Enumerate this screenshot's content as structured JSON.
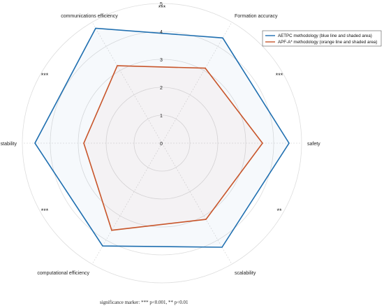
{
  "chart_data": {
    "type": "radar",
    "axes": [
      "safety",
      "Formation accuracy",
      "communications efficiency",
      "stability",
      "computational efficiency",
      "scalability"
    ],
    "rlim": [
      0,
      5
    ],
    "r_ticks": [
      "0",
      "1",
      "2",
      "3",
      "4",
      "5"
    ],
    "grid": true,
    "legend_position": "top-right",
    "series": [
      {
        "name": "AETPC methodology (blue line and shaded area)",
        "color": "#1f6fb0",
        "values": [
          4.55,
          4.35,
          4.75,
          4.55,
          4.25,
          4.3
        ]
      },
      {
        "name": "APF-A* methodology (orange line and shaded area)",
        "color": "#c8552a",
        "values": [
          3.6,
          3.1,
          3.2,
          2.8,
          3.6,
          3.15
        ]
      }
    ],
    "significance_marks": [
      {
        "between": [
          "safety",
          "Formation accuracy"
        ],
        "label": "***"
      },
      {
        "between": [
          "Formation accuracy",
          "communications efficiency"
        ],
        "label": "***"
      },
      {
        "between": [
          "communications efficiency",
          "stability"
        ],
        "label": "***"
      },
      {
        "between": [
          "stability",
          "computational efficiency"
        ],
        "label": "***"
      },
      {
        "between": [
          "scalability",
          "safety"
        ],
        "label": "**"
      }
    ],
    "note": "significance marker: *** p<0.001, ** p<0.01"
  }
}
